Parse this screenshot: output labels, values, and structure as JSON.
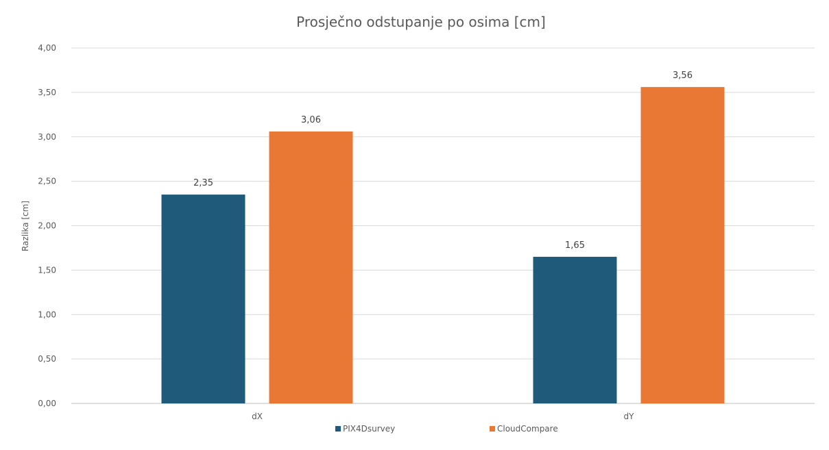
{
  "chart_data": {
    "type": "bar",
    "title": "Prosječno odstupanje po osima [cm]",
    "xlabel": "",
    "ylabel": "Razlika [cm]",
    "categories": [
      "dX",
      "dY"
    ],
    "series": [
      {
        "name": "PIX4Dsurvey",
        "values": [
          2.35,
          1.65
        ],
        "labels": [
          "2,35",
          "1,65"
        ],
        "color": "#1f5a7a"
      },
      {
        "name": "CloudCompare",
        "values": [
          3.06,
          3.56
        ],
        "labels": [
          "3,06",
          "3,56"
        ],
        "color": "#e87834"
      }
    ],
    "ylim": [
      0,
      4
    ],
    "yticks": [
      0,
      0.5,
      1,
      1.5,
      2,
      2.5,
      3,
      3.5,
      4
    ],
    "ytick_labels": [
      "0,00",
      "0,50",
      "1,00",
      "1,50",
      "2,00",
      "2,50",
      "3,00",
      "3,50",
      "4,00"
    ],
    "grid": true,
    "legend_position": "bottom"
  }
}
